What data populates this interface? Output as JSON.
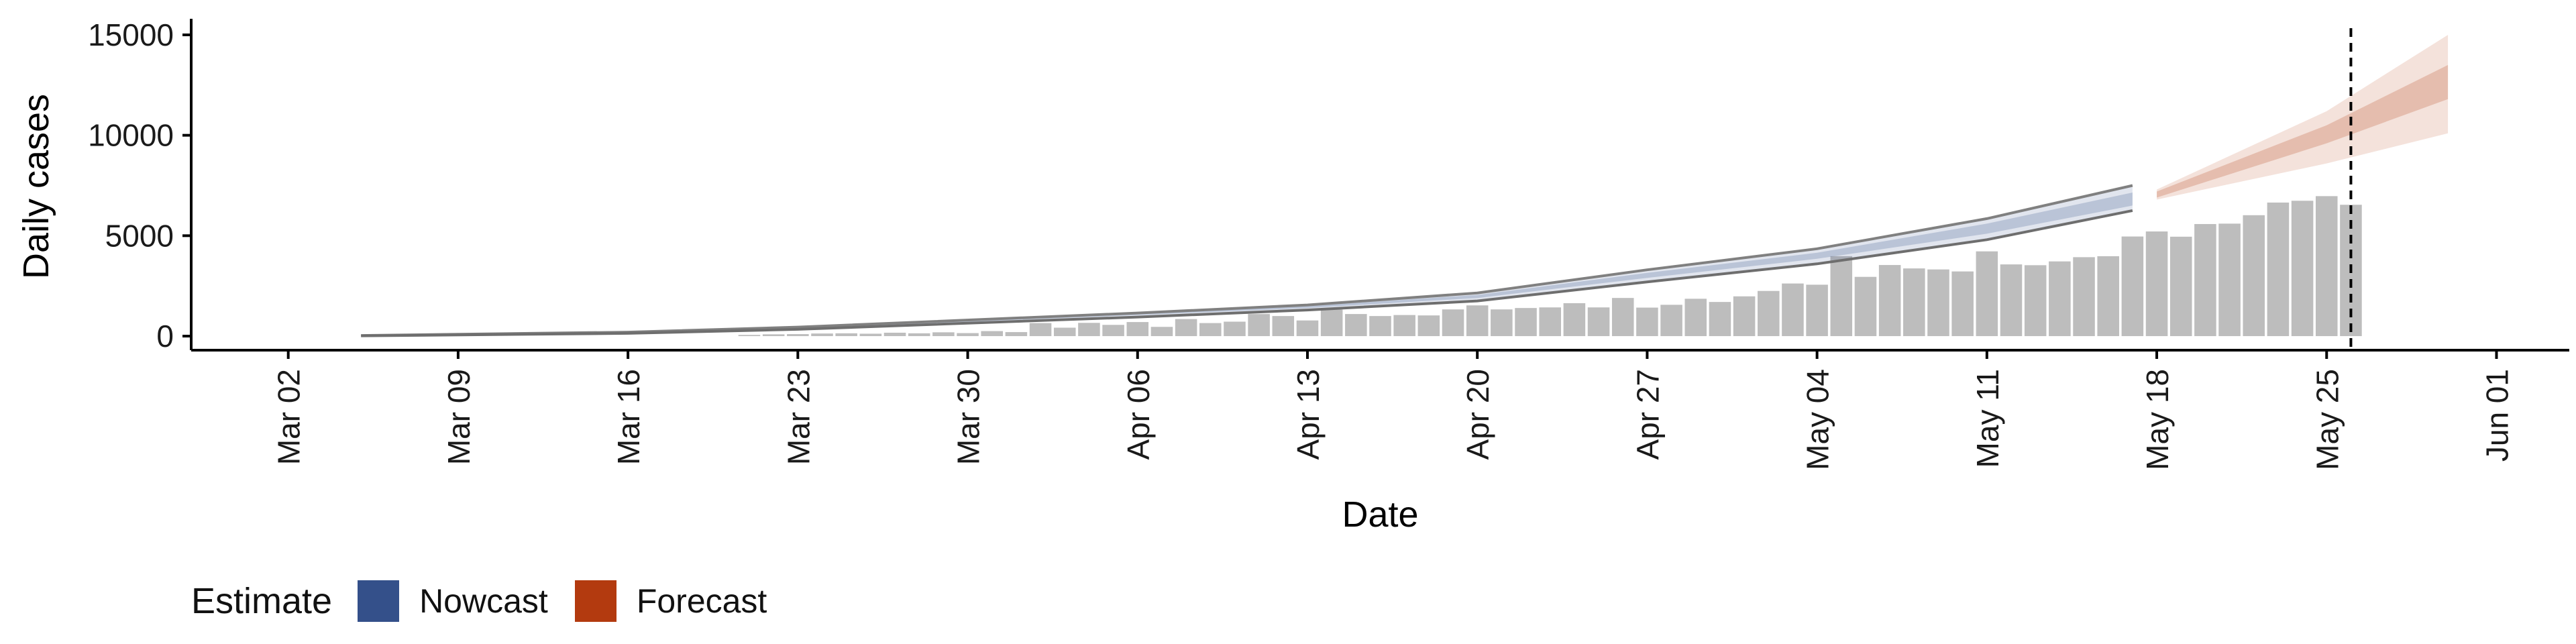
{
  "chart_data": {
    "type": "bar",
    "xlabel": "Date",
    "ylabel": "Daily cases",
    "x_range": [
      "2020-02-27",
      "2020-06-04"
    ],
    "ylim": [
      -700,
      15800
    ],
    "y_ticks": [
      0,
      5000,
      10000,
      15000
    ],
    "x_ticks": [
      {
        "date": "2020-03-02",
        "label": "Mar 02"
      },
      {
        "date": "2020-03-09",
        "label": "Mar 09"
      },
      {
        "date": "2020-03-16",
        "label": "Mar 16"
      },
      {
        "date": "2020-03-23",
        "label": "Mar 23"
      },
      {
        "date": "2020-03-30",
        "label": "Mar 30"
      },
      {
        "date": "2020-04-06",
        "label": "Apr 06"
      },
      {
        "date": "2020-04-13",
        "label": "Apr 13"
      },
      {
        "date": "2020-04-20",
        "label": "Apr 20"
      },
      {
        "date": "2020-04-27",
        "label": "Apr 27"
      },
      {
        "date": "2020-05-04",
        "label": "May 04"
      },
      {
        "date": "2020-05-11",
        "label": "May 11"
      },
      {
        "date": "2020-05-18",
        "label": "May 18"
      },
      {
        "date": "2020-05-25",
        "label": "May 25"
      },
      {
        "date": "2020-06-01",
        "label": "Jun 01"
      }
    ],
    "grid": false,
    "observed_cases": {
      "color": "#bdbdbd",
      "dates": [
        "2020-03-21",
        "2020-03-22",
        "2020-03-23",
        "2020-03-24",
        "2020-03-25",
        "2020-03-26",
        "2020-03-27",
        "2020-03-28",
        "2020-03-29",
        "2020-03-30",
        "2020-03-31",
        "2020-04-01",
        "2020-04-02",
        "2020-04-03",
        "2020-04-04",
        "2020-04-05",
        "2020-04-06",
        "2020-04-07",
        "2020-04-08",
        "2020-04-09",
        "2020-04-10",
        "2020-04-11",
        "2020-04-12",
        "2020-04-13",
        "2020-04-14",
        "2020-04-15",
        "2020-04-16",
        "2020-04-17",
        "2020-04-18",
        "2020-04-19",
        "2020-04-20",
        "2020-04-21",
        "2020-04-22",
        "2020-04-23",
        "2020-04-24",
        "2020-04-25",
        "2020-04-26",
        "2020-04-27",
        "2020-04-28",
        "2020-04-29",
        "2020-04-30",
        "2020-05-01",
        "2020-05-02",
        "2020-05-03",
        "2020-05-04",
        "2020-05-05",
        "2020-05-06",
        "2020-05-07",
        "2020-05-08",
        "2020-05-09",
        "2020-05-10",
        "2020-05-11",
        "2020-05-12",
        "2020-05-13",
        "2020-05-14",
        "2020-05-15",
        "2020-05-16",
        "2020-05-17",
        "2020-05-18",
        "2020-05-19",
        "2020-05-20",
        "2020-05-21",
        "2020-05-22",
        "2020-05-23",
        "2020-05-24",
        "2020-05-25",
        "2020-05-26"
      ],
      "values": [
        60,
        90,
        100,
        130,
        140,
        120,
        170,
        140,
        190,
        150,
        250,
        200,
        650,
        420,
        660,
        560,
        700,
        460,
        850,
        650,
        720,
        1100,
        1000,
        780,
        1320,
        1100,
        1000,
        1050,
        1030,
        1330,
        1530,
        1330,
        1400,
        1430,
        1640,
        1430,
        1900,
        1420,
        1560,
        1860,
        1700,
        1980,
        2250,
        2620,
        2560,
        3980,
        2950,
        3540,
        3370,
        3320,
        3220,
        4220,
        3570,
        3530,
        3720,
        3930,
        3980,
        4960,
        5210,
        4950,
        5580,
        5600,
        6020,
        6650,
        6740,
        6970,
        6540
      ]
    },
    "series": [
      {
        "name": "Nowcast",
        "color": "#34508a",
        "x": [
          "2020-03-05",
          "2020-03-16",
          "2020-03-23",
          "2020-04-06",
          "2020-04-13",
          "2020-04-20",
          "2020-04-27",
          "2020-05-04",
          "2020-05-11",
          "2020-05-17"
        ],
        "upper": [
          30,
          200,
          450,
          1150,
          1550,
          2150,
          3300,
          4350,
          5850,
          7500
        ],
        "upper_mid": [
          25,
          180,
          420,
          1100,
          1500,
          2050,
          3150,
          4150,
          5600,
          7150
        ],
        "lower_mid": [
          20,
          160,
          380,
          1050,
          1400,
          1900,
          2900,
          3850,
          5100,
          6500
        ],
        "lower": [
          15,
          140,
          340,
          950,
          1300,
          1750,
          2700,
          3600,
          4800,
          6250
        ]
      },
      {
        "name": "Forecast",
        "color": "#b33a0f",
        "x": [
          "2020-05-18",
          "2020-05-25",
          "2020-05-30"
        ],
        "upper": [
          7300,
          11200,
          15000
        ],
        "upper_mid": [
          7200,
          10500,
          13500
        ],
        "lower_mid": [
          6900,
          9600,
          11800
        ],
        "lower": [
          6800,
          8600,
          10100
        ]
      }
    ],
    "reference_line": {
      "date": "2020-05-26"
    },
    "legend": {
      "title": "Estimate",
      "position": "bottom-left",
      "entries": [
        {
          "label": "Nowcast",
          "color": "#34508a"
        },
        {
          "label": "Forecast",
          "color": "#b33a0f"
        }
      ]
    }
  }
}
